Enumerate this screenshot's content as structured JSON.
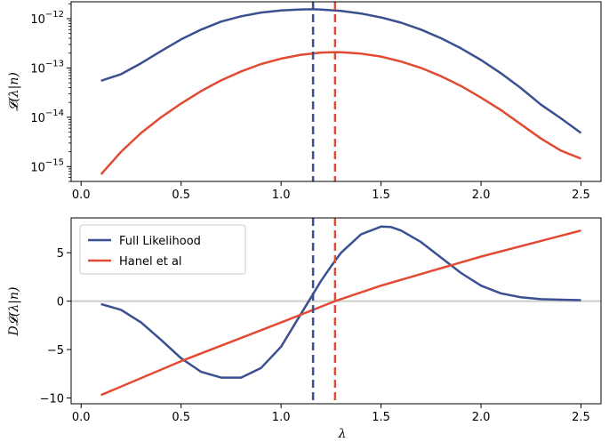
{
  "chart_data": [
    {
      "type": "line",
      "panel": "top",
      "ylabel": "𝓛(λ|n)",
      "xlabel": "",
      "yscale": "log",
      "xlim": [
        -0.05,
        2.6
      ],
      "ylim": [
        5e-16,
        2.2e-12
      ],
      "xticks": [
        "0.0",
        "0.5",
        "1.0",
        "1.5",
        "2.0",
        "2.5"
      ],
      "yticks": [
        {
          "value": 1e-12,
          "label": "10",
          "exp": "−12"
        },
        {
          "value": 1e-13,
          "label": "10",
          "exp": "−13"
        },
        {
          "value": 1e-14,
          "label": "10",
          "exp": "−14"
        },
        {
          "value": 1e-15,
          "label": "10",
          "exp": "−15"
        }
      ],
      "series": [
        {
          "color": "#3b5091",
          "x": [
            0.1,
            0.2,
            0.3,
            0.4,
            0.5,
            0.6,
            0.7,
            0.8,
            0.9,
            1.0,
            1.1,
            1.16,
            1.2,
            1.3,
            1.4,
            1.5,
            1.6,
            1.7,
            1.8,
            1.9,
            2.0,
            2.1,
            2.2,
            2.3,
            2.4,
            2.5
          ],
          "y": [
            5.5e-14,
            7.5e-14,
            1.25e-13,
            2.2e-13,
            3.8e-13,
            6e-13,
            8.7e-13,
            1.12e-12,
            1.33e-12,
            1.47e-12,
            1.54e-12,
            1.55e-12,
            1.53e-12,
            1.44e-12,
            1.27e-12,
            1.06e-12,
            8.3e-13,
            6e-13,
            4e-13,
            2.5e-13,
            1.45e-13,
            7.8e-14,
            3.9e-14,
            1.8e-14,
            9.5e-15,
            4.8e-15
          ]
        },
        {
          "color": "#e24a33",
          "x": [
            0.1,
            0.2,
            0.3,
            0.4,
            0.5,
            0.6,
            0.7,
            0.8,
            0.9,
            1.0,
            1.1,
            1.2,
            1.27,
            1.3,
            1.4,
            1.5,
            1.6,
            1.7,
            1.8,
            1.9,
            2.0,
            2.1,
            2.2,
            2.3,
            2.4,
            2.5
          ],
          "y": [
            7e-16,
            2e-15,
            4.8e-15,
            1e-14,
            1.9e-14,
            3.4e-14,
            5.6e-14,
            8.5e-14,
            1.2e-13,
            1.55e-13,
            1.85e-13,
            2.05e-13,
            2.1e-13,
            2.08e-13,
            1.95e-13,
            1.7e-13,
            1.35e-13,
            1e-13,
            6.8e-14,
            4.3e-14,
            2.5e-14,
            1.4e-14,
            7.2e-15,
            3.7e-15,
            2.1e-15,
            1.45e-15
          ]
        }
      ],
      "vlines": [
        {
          "x": 1.16,
          "color": "#3b5091",
          "style": "dashed"
        },
        {
          "x": 1.27,
          "color": "#e24a33",
          "style": "dashed"
        }
      ]
    },
    {
      "type": "line",
      "panel": "bottom",
      "ylabel": "D𝓛(λ|n)",
      "xlabel": "λ",
      "xlim": [
        -0.05,
        2.6
      ],
      "ylim": [
        -10.6,
        8.6
      ],
      "xticks": [
        "0.0",
        "0.5",
        "1.0",
        "1.5",
        "2.0",
        "2.5"
      ],
      "yticks": [
        {
          "value": 5,
          "label": "5"
        },
        {
          "value": 0,
          "label": "0"
        },
        {
          "value": -5,
          "label": "−5"
        },
        {
          "value": -10,
          "label": "−10"
        }
      ],
      "hline": {
        "y": 0,
        "color": "#cccccc"
      },
      "legend": {
        "position": "top-left",
        "entries": [
          "Full Likelihood",
          "Hanel et al"
        ]
      },
      "series": [
        {
          "name": "Full Likelihood",
          "color": "#3b5091",
          "x": [
            0.1,
            0.2,
            0.3,
            0.4,
            0.5,
            0.6,
            0.7,
            0.8,
            0.9,
            1.0,
            1.05,
            1.1,
            1.15,
            1.2,
            1.25,
            1.3,
            1.4,
            1.5,
            1.55,
            1.6,
            1.7,
            1.8,
            1.9,
            2.0,
            2.1,
            2.2,
            2.3,
            2.4,
            2.5
          ],
          "y": [
            -0.3,
            -0.9,
            -2.2,
            -4.0,
            -5.9,
            -7.3,
            -7.9,
            -7.9,
            -6.9,
            -4.7,
            -3.0,
            -1.3,
            0.4,
            2.1,
            3.6,
            5.0,
            6.9,
            7.7,
            7.65,
            7.3,
            6.1,
            4.5,
            2.9,
            1.6,
            0.8,
            0.4,
            0.2,
            0.15,
            0.1
          ]
        },
        {
          "name": "Hanel et al",
          "color": "#e24a33",
          "x": [
            0.1,
            0.5,
            1.0,
            1.27,
            1.5,
            2.0,
            2.5
          ],
          "y": [
            -9.7,
            -6.2,
            -2.2,
            0.0,
            1.6,
            4.6,
            7.3
          ]
        }
      ],
      "vlines": [
        {
          "x": 1.16,
          "color": "#3b5091",
          "style": "dashed"
        },
        {
          "x": 1.27,
          "color": "#e24a33",
          "style": "dashed"
        }
      ]
    }
  ]
}
